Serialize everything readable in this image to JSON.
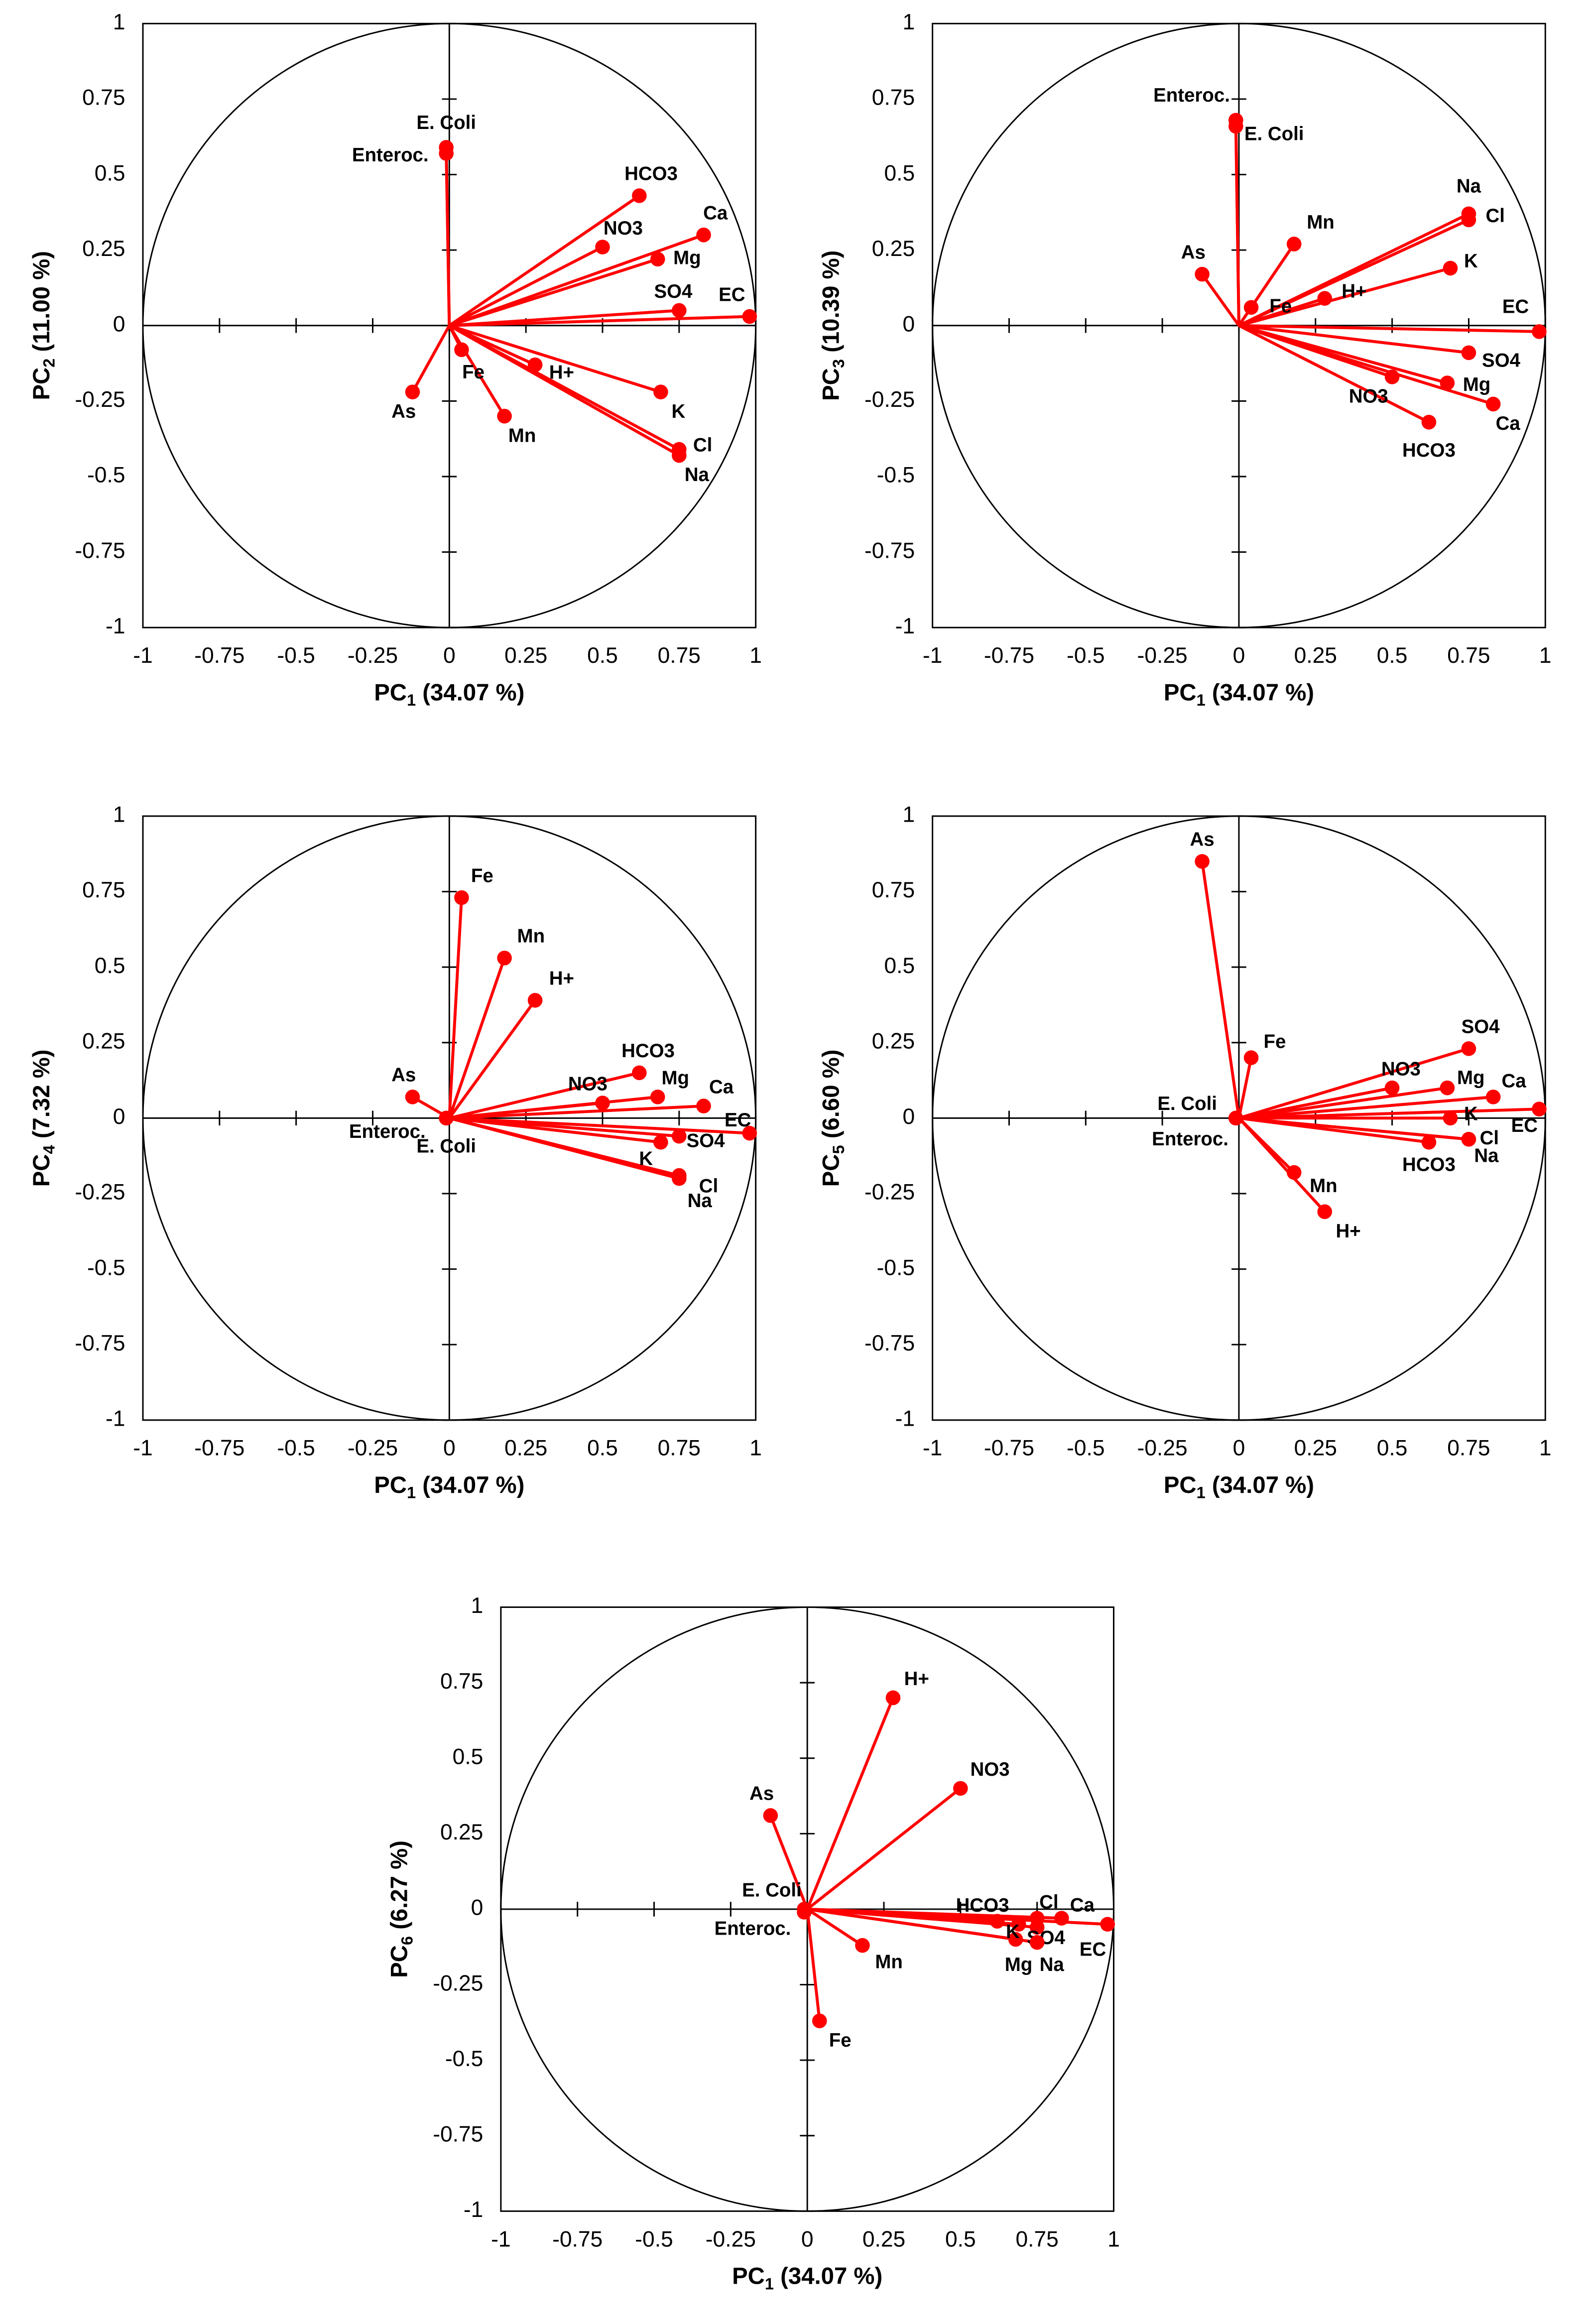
{
  "chart_data": [
    {
      "type": "scatter",
      "color": "#ff0000",
      "xlabel": [
        "PC",
        "1",
        " (34.07 %)"
      ],
      "ylabel": [
        "PC",
        "2",
        " (11.00 %)"
      ],
      "labels": [
        "E. Coli",
        "Enteroc.",
        "HCO3",
        "Ca",
        "NO3",
        "Mg",
        "SO4",
        "EC",
        "Fe",
        "H+",
        "As",
        "Mn",
        "K",
        "Cl",
        "Na"
      ],
      "x": [
        -0.01,
        -0.01,
        0.62,
        0.83,
        0.5,
        0.68,
        0.75,
        0.98,
        0.04,
        0.28,
        -0.12,
        0.18,
        0.69,
        0.75,
        0.75
      ],
      "y": [
        0.59,
        0.57,
        0.43,
        0.3,
        0.26,
        0.22,
        0.05,
        0.03,
        -0.08,
        -0.13,
        -0.22,
        -0.3,
        -0.22,
        -0.41,
        -0.43
      ],
      "xlim": [
        -1,
        1
      ],
      "ylim": [
        -1,
        1
      ],
      "xticks": [
        -1,
        -0.75,
        -0.5,
        -0.25,
        0,
        0.25,
        0.5,
        0.75,
        1
      ],
      "yticks": [
        -1,
        -0.75,
        -0.5,
        -0.25,
        0,
        0.25,
        0.5,
        0.75,
        1
      ]
    },
    {
      "type": "scatter",
      "color": "#ff0000",
      "xlabel": [
        "PC",
        "1",
        " (34.07 %)"
      ],
      "ylabel": [
        "PC",
        "3",
        " (10.39 %)"
      ],
      "labels": [
        "E. Coli",
        "Enteroc.",
        "HCO3",
        "Ca",
        "NO3",
        "Mg",
        "SO4",
        "EC",
        "Fe",
        "H+",
        "As",
        "Mn",
        "K",
        "Cl",
        "Na"
      ],
      "x": [
        -0.01,
        -0.01,
        0.62,
        0.83,
        0.5,
        0.68,
        0.75,
        0.98,
        0.04,
        0.28,
        -0.12,
        0.18,
        0.69,
        0.75,
        0.75
      ],
      "y": [
        0.66,
        0.68,
        -0.32,
        -0.26,
        -0.17,
        -0.19,
        -0.09,
        -0.02,
        0.06,
        0.09,
        0.17,
        0.27,
        0.19,
        0.35,
        0.37
      ],
      "xlim": [
        -1,
        1
      ],
      "ylim": [
        -1,
        1
      ],
      "xticks": [
        -1,
        -0.75,
        -0.5,
        -0.25,
        0,
        0.25,
        0.5,
        0.75,
        1
      ],
      "yticks": [
        -1,
        -0.75,
        -0.5,
        -0.25,
        0,
        0.25,
        0.5,
        0.75,
        1
      ]
    },
    {
      "type": "scatter",
      "color": "#ff0000",
      "xlabel": [
        "PC",
        "1",
        " (34.07 %)"
      ],
      "ylabel": [
        "PC",
        "4",
        " (7.32 %)"
      ],
      "labels": [
        "E. Coli",
        "Enteroc.",
        "HCO3",
        "Ca",
        "NO3",
        "Mg",
        "SO4",
        "EC",
        "Fe",
        "H+",
        "As",
        "Mn",
        "K",
        "Cl",
        "Na"
      ],
      "x": [
        -0.01,
        -0.01,
        0.62,
        0.83,
        0.5,
        0.68,
        0.75,
        0.98,
        0.04,
        0.28,
        -0.12,
        0.18,
        0.69,
        0.75,
        0.75
      ],
      "y": [
        0.0,
        0.0,
        0.15,
        0.04,
        0.05,
        0.07,
        -0.06,
        -0.05,
        0.73,
        0.39,
        0.07,
        0.53,
        -0.08,
        -0.19,
        -0.2
      ],
      "xlim": [
        -1,
        1
      ],
      "ylim": [
        -1,
        1
      ],
      "xticks": [
        -1,
        -0.75,
        -0.5,
        -0.25,
        0,
        0.25,
        0.5,
        0.75,
        1
      ],
      "yticks": [
        -1,
        -0.75,
        -0.5,
        -0.25,
        0,
        0.25,
        0.5,
        0.75,
        1
      ]
    },
    {
      "type": "scatter",
      "color": "#ff0000",
      "xlabel": [
        "PC",
        "1",
        " (34.07 %)"
      ],
      "ylabel": [
        "PC",
        "5",
        " (6.60 %)"
      ],
      "labels": [
        "E. Coli",
        "Enteroc.",
        "HCO3",
        "Ca",
        "NO3",
        "Mg",
        "SO4",
        "EC",
        "Fe",
        "H+",
        "As",
        "Mn",
        "K",
        "Cl",
        "Na"
      ],
      "x": [
        -0.01,
        -0.01,
        0.62,
        0.83,
        0.5,
        0.68,
        0.75,
        0.98,
        0.04,
        0.28,
        -0.12,
        0.18,
        0.69,
        0.75,
        0.75
      ],
      "y": [
        0.0,
        0.0,
        -0.08,
        0.07,
        0.1,
        0.1,
        0.23,
        0.03,
        0.2,
        -0.31,
        0.85,
        -0.18,
        0.0,
        -0.07,
        -0.07
      ],
      "xlim": [
        -1,
        1
      ],
      "ylim": [
        -1,
        1
      ],
      "xticks": [
        -1,
        -0.75,
        -0.5,
        -0.25,
        0,
        0.25,
        0.5,
        0.75,
        1
      ],
      "yticks": [
        -1,
        -0.75,
        -0.5,
        -0.25,
        0,
        0.25,
        0.5,
        0.75,
        1
      ]
    },
    {
      "type": "scatter",
      "color": "#ff0000",
      "xlabel": [
        "PC",
        "1",
        " (34.07 %)"
      ],
      "ylabel": [
        "PC",
        "6",
        " (6.27 %)"
      ],
      "labels": [
        "E. Coli",
        "Enteroc.",
        "HCO3",
        "Ca",
        "NO3",
        "Mg",
        "SO4",
        "EC",
        "Fe",
        "H+",
        "As",
        "Mn",
        "K",
        "Cl",
        "Na"
      ],
      "x": [
        -0.01,
        -0.01,
        0.62,
        0.83,
        0.5,
        0.68,
        0.75,
        0.98,
        0.04,
        0.28,
        -0.12,
        0.18,
        0.69,
        0.75,
        0.75
      ],
      "y": [
        0.0,
        -0.01,
        -0.04,
        -0.03,
        0.4,
        -0.1,
        -0.06,
        -0.05,
        -0.37,
        0.7,
        0.31,
        -0.12,
        -0.05,
        -0.03,
        -0.11
      ],
      "xlim": [
        -1,
        1
      ],
      "ylim": [
        -1,
        1
      ],
      "xticks": [
        -1,
        -0.75,
        -0.5,
        -0.25,
        0,
        0.25,
        0.5,
        0.75,
        1
      ],
      "yticks": [
        -1,
        -0.75,
        -0.5,
        -0.25,
        0,
        0.25,
        0.5,
        0.75,
        1
      ]
    }
  ]
}
